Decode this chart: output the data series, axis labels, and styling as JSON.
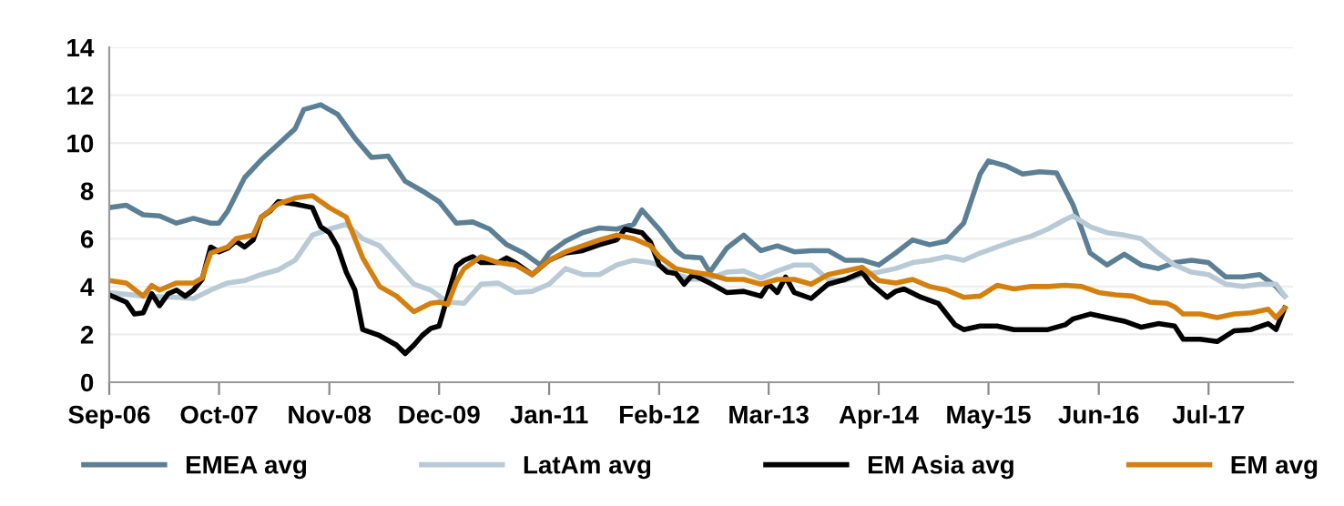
{
  "chart_data": {
    "type": "line",
    "xlim": [
      "2006-09",
      "2018-05"
    ],
    "xticks": [
      {
        "value": "2006-09",
        "label": "Sep-06"
      },
      {
        "value": "2007-10",
        "label": "Oct-07"
      },
      {
        "value": "2008-11",
        "label": "Nov-08"
      },
      {
        "value": "2009-12",
        "label": "Dec-09"
      },
      {
        "value": "2011-01",
        "label": "Jan-11"
      },
      {
        "value": "2012-02",
        "label": "Feb-12"
      },
      {
        "value": "2013-03",
        "label": "Mar-13"
      },
      {
        "value": "2014-04",
        "label": "Apr-14"
      },
      {
        "value": "2015-05",
        "label": "May-15"
      },
      {
        "value": "2016-06",
        "label": "Jun-16"
      },
      {
        "value": "2017-07",
        "label": "Jul-17"
      }
    ],
    "ylim": [
      0,
      14
    ],
    "yticks": [
      0,
      2,
      4,
      6,
      8,
      10,
      12,
      14
    ],
    "grid": "y",
    "legend": "bottom",
    "marker": "none",
    "line_style": "solid",
    "series": [
      {
        "name": "EMEA avg",
        "color": "#5b7f95",
        "x": [
          "2006-09",
          "2006-11",
          "2007-01",
          "2007-03",
          "2007-05",
          "2007-07",
          "2007-09",
          "2007-10",
          "2007-11",
          "2008-01",
          "2008-03",
          "2008-05",
          "2008-07",
          "2008-08",
          "2008-10",
          "2008-12",
          "2009-02",
          "2009-04",
          "2009-06",
          "2009-08",
          "2009-10",
          "2009-12",
          "2010-02",
          "2010-04",
          "2010-06",
          "2010-08",
          "2010-10",
          "2010-12",
          "2011-01",
          "2011-03",
          "2011-05",
          "2011-07",
          "2011-09",
          "2011-11",
          "2011-12",
          "2012-02",
          "2012-04",
          "2012-05",
          "2012-07",
          "2012-08",
          "2012-10",
          "2012-12",
          "2013-02",
          "2013-04",
          "2013-06",
          "2013-08",
          "2013-10",
          "2013-12",
          "2014-02",
          "2014-04",
          "2014-06",
          "2014-08",
          "2014-10",
          "2014-12",
          "2015-02",
          "2015-04",
          "2015-05",
          "2015-07",
          "2015-09",
          "2015-11",
          "2016-01",
          "2016-03",
          "2016-05",
          "2016-07",
          "2016-09",
          "2016-11",
          "2017-01",
          "2017-03",
          "2017-05",
          "2017-07",
          "2017-09",
          "2017-11",
          "2018-01",
          "2018-03",
          "2018-04"
        ],
        "values": [
          7.3,
          7.4,
          7.0,
          6.95,
          6.65,
          6.85,
          6.65,
          6.65,
          7.15,
          8.55,
          9.3,
          9.95,
          10.6,
          11.4,
          11.6,
          11.2,
          10.2,
          9.4,
          9.45,
          8.4,
          8.0,
          7.55,
          6.65,
          6.7,
          6.4,
          5.75,
          5.4,
          4.9,
          5.4,
          5.9,
          6.25,
          6.45,
          6.4,
          6.6,
          7.2,
          6.4,
          5.5,
          5.25,
          5.2,
          4.6,
          5.6,
          6.15,
          5.5,
          5.7,
          5.45,
          5.5,
          5.5,
          5.1,
          5.1,
          4.9,
          5.4,
          5.95,
          5.75,
          5.9,
          6.65,
          8.7,
          9.25,
          9.05,
          8.7,
          8.8,
          8.75,
          7.4,
          5.4,
          4.9,
          5.35,
          4.9,
          4.75,
          5.0,
          5.1,
          5.0,
          4.4,
          4.4,
          4.5,
          4.0,
          3.6
        ]
      },
      {
        "name": "LatAm avg",
        "color": "#b8cad5",
        "x": [
          "2006-09",
          "2007-01",
          "2007-05",
          "2007-07",
          "2007-09",
          "2007-11",
          "2008-01",
          "2008-03",
          "2008-05",
          "2008-07",
          "2008-09",
          "2008-11",
          "2009-01",
          "2009-03",
          "2009-05",
          "2009-07",
          "2009-09",
          "2009-11",
          "2010-01",
          "2010-03",
          "2010-05",
          "2010-07",
          "2010-09",
          "2010-11",
          "2011-01",
          "2011-03",
          "2011-05",
          "2011-07",
          "2011-09",
          "2011-11",
          "2012-01",
          "2012-02",
          "2012-04",
          "2012-06",
          "2012-08",
          "2012-10",
          "2012-12",
          "2013-02",
          "2013-04",
          "2013-06",
          "2013-08",
          "2013-10",
          "2013-12",
          "2014-02",
          "2014-04",
          "2014-06",
          "2014-08",
          "2014-10",
          "2014-12",
          "2015-02",
          "2015-04",
          "2015-06",
          "2015-08",
          "2015-10",
          "2015-12",
          "2016-02",
          "2016-03",
          "2016-05",
          "2016-07",
          "2016-09",
          "2016-11",
          "2017-01",
          "2017-03",
          "2017-05",
          "2017-07",
          "2017-09",
          "2017-11",
          "2018-01",
          "2018-03",
          "2018-04"
        ],
        "values": [
          3.75,
          3.6,
          3.55,
          3.5,
          3.85,
          4.15,
          4.25,
          4.5,
          4.7,
          5.1,
          6.15,
          6.4,
          6.6,
          6.0,
          5.7,
          4.9,
          4.1,
          3.85,
          3.35,
          3.3,
          4.1,
          4.15,
          3.75,
          3.8,
          4.1,
          4.75,
          4.5,
          4.5,
          4.9,
          5.1,
          5.0,
          4.9,
          4.5,
          4.3,
          4.35,
          4.6,
          4.65,
          4.35,
          4.65,
          4.9,
          4.9,
          4.3,
          4.25,
          4.5,
          4.6,
          4.75,
          5.0,
          5.1,
          5.25,
          5.1,
          5.4,
          5.65,
          5.9,
          6.1,
          6.4,
          6.8,
          6.95,
          6.5,
          6.25,
          6.15,
          6.0,
          5.4,
          4.9,
          4.6,
          4.5,
          4.1,
          4.0,
          4.1,
          4.1,
          3.6
        ]
      },
      {
        "name": "EM Asia avg",
        "color": "#000000",
        "x": [
          "2006-09",
          "2006-11",
          "2006-12",
          "2007-01",
          "2007-02",
          "2007-03",
          "2007-04",
          "2007-05",
          "2007-06",
          "2007-07",
          "2007-08",
          "2007-09",
          "2007-10",
          "2007-11",
          "2007-12",
          "2008-01",
          "2008-02",
          "2008-03",
          "2008-04",
          "2008-05",
          "2008-07",
          "2008-09",
          "2008-10",
          "2008-11",
          "2008-12",
          "2009-01",
          "2009-02",
          "2009-03",
          "2009-05",
          "2009-07",
          "2009-08",
          "2009-09",
          "2009-10",
          "2009-11",
          "2009-12",
          "2010-01",
          "2010-02",
          "2010-03",
          "2010-04",
          "2010-05",
          "2010-07",
          "2010-08",
          "2010-09",
          "2010-11",
          "2011-01",
          "2011-03",
          "2011-05",
          "2011-07",
          "2011-09",
          "2011-10",
          "2011-12",
          "2012-01",
          "2012-02",
          "2012-03",
          "2012-04",
          "2012-05",
          "2012-06",
          "2012-08",
          "2012-10",
          "2012-12",
          "2013-02",
          "2013-03",
          "2013-04",
          "2013-05",
          "2013-06",
          "2013-08",
          "2013-10",
          "2013-12",
          "2014-02",
          "2014-03",
          "2014-05",
          "2014-06",
          "2014-07",
          "2014-09",
          "2014-11",
          "2015-01",
          "2015-02",
          "2015-04",
          "2015-06",
          "2015-08",
          "2015-10",
          "2015-12",
          "2016-02",
          "2016-03",
          "2016-05",
          "2016-07",
          "2016-09",
          "2016-11",
          "2017-01",
          "2017-03",
          "2017-04",
          "2017-06",
          "2017-08",
          "2017-10",
          "2017-12",
          "2018-02",
          "2018-03",
          "2018-04"
        ],
        "values": [
          3.65,
          3.35,
          2.85,
          2.9,
          3.7,
          3.2,
          3.7,
          3.85,
          3.6,
          3.85,
          4.3,
          5.65,
          5.45,
          5.6,
          5.9,
          5.65,
          5.95,
          6.9,
          7.15,
          7.55,
          7.45,
          7.3,
          6.5,
          6.25,
          5.65,
          4.6,
          3.85,
          2.2,
          1.95,
          1.55,
          1.2,
          1.55,
          1.95,
          2.25,
          2.35,
          3.6,
          4.85,
          5.1,
          5.25,
          5.0,
          5.0,
          5.2,
          5.0,
          4.5,
          5.1,
          5.4,
          5.5,
          5.75,
          5.95,
          6.4,
          6.25,
          5.85,
          4.9,
          4.6,
          4.55,
          4.1,
          4.5,
          4.15,
          3.75,
          3.8,
          3.6,
          4.1,
          3.75,
          4.4,
          3.75,
          3.5,
          4.1,
          4.3,
          4.6,
          4.15,
          3.55,
          3.8,
          3.9,
          3.55,
          3.3,
          2.4,
          2.2,
          2.35,
          2.35,
          2.2,
          2.2,
          2.2,
          2.4,
          2.65,
          2.85,
          2.7,
          2.55,
          2.3,
          2.45,
          2.35,
          1.8,
          1.8,
          1.7,
          2.15,
          2.2,
          2.45,
          2.2,
          3.1
        ]
      },
      {
        "name": "EM avg",
        "color": "#d4800f",
        "x": [
          "2006-09",
          "2006-11",
          "2007-01",
          "2007-02",
          "2007-03",
          "2007-05",
          "2007-07",
          "2007-08",
          "2007-09",
          "2007-11",
          "2007-12",
          "2008-02",
          "2008-03",
          "2008-05",
          "2008-07",
          "2008-09",
          "2008-11",
          "2009-01",
          "2009-03",
          "2009-05",
          "2009-07",
          "2009-09",
          "2009-11",
          "2009-12",
          "2010-01",
          "2010-02",
          "2010-03",
          "2010-05",
          "2010-07",
          "2010-09",
          "2010-11",
          "2011-01",
          "2011-03",
          "2011-05",
          "2011-07",
          "2011-09",
          "2011-11",
          "2012-01",
          "2012-02",
          "2012-04",
          "2012-06",
          "2012-08",
          "2012-10",
          "2012-12",
          "2013-02",
          "2013-04",
          "2013-06",
          "2013-08",
          "2013-10",
          "2013-12",
          "2014-02",
          "2014-04",
          "2014-06",
          "2014-08",
          "2014-10",
          "2014-12",
          "2015-02",
          "2015-04",
          "2015-06",
          "2015-08",
          "2015-10",
          "2015-12",
          "2016-02",
          "2016-04",
          "2016-06",
          "2016-08",
          "2016-10",
          "2016-12",
          "2017-02",
          "2017-03",
          "2017-04",
          "2017-06",
          "2017-08",
          "2017-10",
          "2017-12",
          "2018-02",
          "2018-03",
          "2018-04"
        ],
        "values": [
          4.25,
          4.15,
          3.6,
          4.05,
          3.85,
          4.15,
          4.15,
          4.35,
          5.4,
          5.65,
          6.0,
          6.15,
          6.9,
          7.45,
          7.7,
          7.8,
          7.3,
          6.9,
          5.2,
          4.0,
          3.6,
          2.95,
          3.3,
          3.35,
          3.25,
          4.2,
          4.75,
          5.25,
          5.0,
          4.9,
          4.5,
          5.1,
          5.45,
          5.7,
          5.95,
          6.15,
          6.0,
          5.7,
          5.25,
          4.75,
          4.6,
          4.5,
          4.3,
          4.3,
          4.1,
          4.3,
          4.3,
          4.1,
          4.5,
          4.65,
          4.8,
          4.25,
          4.15,
          4.3,
          4.0,
          3.85,
          3.55,
          3.6,
          4.05,
          3.9,
          4.0,
          4.0,
          4.05,
          4.0,
          3.75,
          3.65,
          3.6,
          3.35,
          3.3,
          3.15,
          2.85,
          2.85,
          2.7,
          2.85,
          2.9,
          3.05,
          2.7,
          3.1
        ]
      }
    ]
  }
}
